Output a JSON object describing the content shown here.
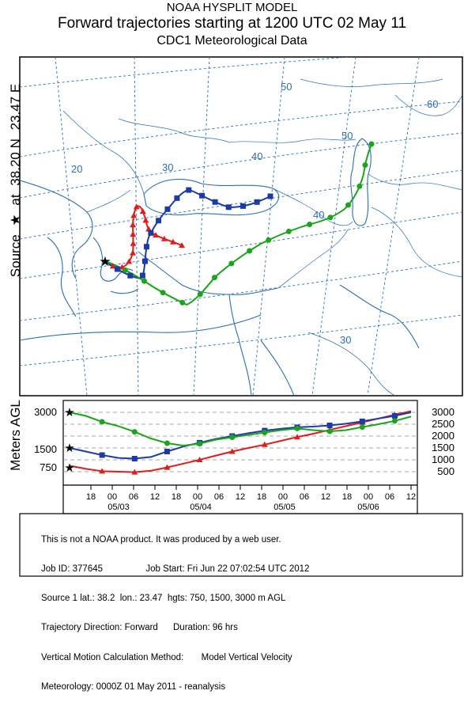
{
  "header": {
    "line1": "NOAA HYSPLIT MODEL",
    "line2": "Forward trajectories starting at 1200 UTC 02 May 11",
    "line3": "CDC1  Meteorological Data"
  },
  "side_label": {
    "prefix": "Source",
    "star": "★",
    "at": "at",
    "lat": "38.20 N",
    "lon": "23.47 E"
  },
  "map": {
    "grid_labels": [
      "20",
      "30",
      "40",
      "50",
      "60",
      "40",
      "50",
      "50",
      "30"
    ],
    "colors": {
      "land": "#ffffff",
      "coast": "#2a6fb6",
      "grid": "#2a6fb6",
      "red": "#e21b1b",
      "blue": "#1c3ba6",
      "green": "#1aa51a"
    }
  },
  "altitude_panel": {
    "ylabel": "Meters AGL",
    "left_ticks": [
      "3000",
      "1500",
      "750"
    ],
    "right_ticks": [
      "3000",
      "2500",
      "2000",
      "1500",
      "1000",
      "500"
    ]
  },
  "time_axis": {
    "hours": [
      "18",
      "00",
      "06",
      "12",
      "18",
      "00",
      "06",
      "12",
      "18",
      "00",
      "06",
      "12",
      "18",
      "00",
      "06",
      "12"
    ],
    "dates": [
      "05/03",
      "05/04",
      "05/05",
      "05/06"
    ]
  },
  "chart_data": {
    "type": "line",
    "title": "Forward trajectories starting at 1200 UTC 02 May 11",
    "ylabel": "Meters AGL",
    "source": {
      "lat": 38.2,
      "lon": 23.47
    },
    "series": [
      {
        "name": "750 m AGL",
        "color": "#e21b1b",
        "marker": "triangle",
        "heights": [
          750,
          620,
          520,
          500,
          480,
          540,
          680,
          840,
          1000,
          1180,
          1350,
          1500,
          1640,
          1800,
          1960,
          2100,
          2260,
          2420,
          2580,
          2740,
          2900,
          3050
        ]
      },
      {
        "name": "1500 m AGL",
        "color": "#1c3ba6",
        "marker": "square",
        "heights": [
          1500,
          1350,
          1200,
          1080,
          1050,
          1120,
          1350,
          1560,
          1720,
          1880,
          2000,
          2120,
          2230,
          2310,
          2370,
          2400,
          2450,
          2520,
          2620,
          2740,
          2850,
          3000
        ]
      },
      {
        "name": "3000 m AGL",
        "color": "#1aa51a",
        "marker": "circle",
        "heights": [
          3000,
          2850,
          2600,
          2420,
          2180,
          1900,
          1700,
          1600,
          1680,
          1850,
          1950,
          2050,
          2150,
          2250,
          2320,
          2250,
          2200,
          2250,
          2380,
          2500,
          2640,
          2820
        ]
      }
    ]
  },
  "info": {
    "l1": "This is not a NOAA product. It was produced by a web user.",
    "l2": "Job ID: 377645                 Job Start: Fri Jun 22 07:02:54 UTC 2012",
    "l3": "Source 1 lat.: 38.2  lon.: 23.47  hgts: 750, 1500, 3000 m AGL",
    "l4": "Trajectory Direction: Forward      Duration: 96 hrs",
    "l5": "Vertical Motion Calculation Method:       Model Vertical Velocity",
    "l6": "Meteorology: 0000Z 01 May 2011 - reanalysis"
  }
}
